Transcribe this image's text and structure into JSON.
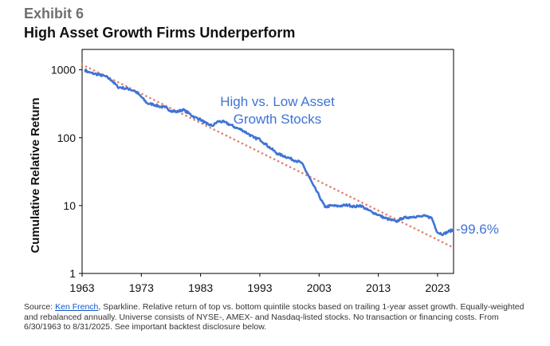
{
  "header": {
    "exhibit": "Exhibit 6",
    "title": "High Asset Growth Firms Underperform"
  },
  "source": {
    "prefix": "Source: ",
    "link_text": "Ken French",
    "text": ", Sparkline. Relative return of top vs. bottom quintile stocks based on trailing 1-year asset growth. Equally-weighted and rebalanced annually. Universe consists of NYSE-, AMEX- and Nasdaq-listed stocks. No transaction or financing costs. From 6/30/1963 to 8/31/2025. See important backtest disclosure below."
  },
  "colors": {
    "series": "#3f73d6",
    "trend": "#e0826e",
    "axis": "#000000"
  },
  "chart_data": {
    "type": "line",
    "title": "High Asset Growth Firms Underperform",
    "xlabel": "",
    "ylabel": "Cumulative Relative Return",
    "yscale": "log",
    "ylim": [
      1,
      2000
    ],
    "xlim": [
      1963,
      2025.7
    ],
    "x_ticks": [
      1963,
      1973,
      1983,
      1993,
      2003,
      2013,
      2023
    ],
    "x_tick_labels": [
      "1963",
      "1973",
      "1983",
      "1993",
      "2003",
      "2013",
      "2023"
    ],
    "y_ticks": [
      1,
      10,
      100,
      1000
    ],
    "y_tick_labels": [
      "1",
      "10",
      "100",
      "1000"
    ],
    "grid": false,
    "series": [
      {
        "name": "High vs. Low Asset Growth Stocks",
        "label_lines": [
          "High vs. Low Asset",
          "Growth Stocks"
        ],
        "x": [
          1963.5,
          1964.0,
          1965.0,
          1966.0,
          1967.0,
          1968.0,
          1969.0,
          1970.0,
          1971.0,
          1972.0,
          1973.0,
          1974.0,
          1975.0,
          1976.0,
          1977.0,
          1978.0,
          1979.0,
          1980.0,
          1981.0,
          1982.0,
          1983.0,
          1984.0,
          1985.0,
          1986.0,
          1987.0,
          1988.0,
          1989.0,
          1990.0,
          1991.0,
          1992.0,
          1993.0,
          1994.0,
          1995.0,
          1996.0,
          1997.0,
          1998.0,
          1999.0,
          2000.0,
          2001.0,
          2002.0,
          2003.0,
          2004.0,
          2005.0,
          2006.0,
          2007.0,
          2008.0,
          2009.0,
          2010.0,
          2011.0,
          2012.0,
          2013.0,
          2014.0,
          2015.0,
          2016.0,
          2017.0,
          2018.0,
          2019.0,
          2020.0,
          2021.0,
          2022.0,
          2023.0,
          2024.0,
          2025.0,
          2025.7
        ],
        "values": [
          1000,
          920,
          880,
          840,
          800,
          700,
          560,
          540,
          520,
          480,
          400,
          320,
          310,
          290,
          280,
          250,
          240,
          260,
          230,
          200,
          185,
          160,
          150,
          175,
          170,
          155,
          140,
          130,
          115,
          100,
          95,
          80,
          68,
          58,
          54,
          50,
          46,
          43,
          30,
          20,
          14,
          9.5,
          10,
          9.8,
          10,
          10.2,
          9.6,
          10.1,
          8.8,
          8.0,
          7.3,
          6.6,
          6.2,
          5.8,
          6.5,
          6.7,
          6.9,
          6.9,
          7.0,
          6.6,
          4.0,
          3.8,
          4.2,
          4.4
        ]
      },
      {
        "name": "Trend",
        "style": "dotted",
        "x": [
          1963,
          2025.7
        ],
        "values": [
          1200,
          2.4
        ]
      }
    ],
    "annotations": [
      {
        "text": "-99.6%",
        "x": 2025.7,
        "y": 4.4
      }
    ]
  }
}
